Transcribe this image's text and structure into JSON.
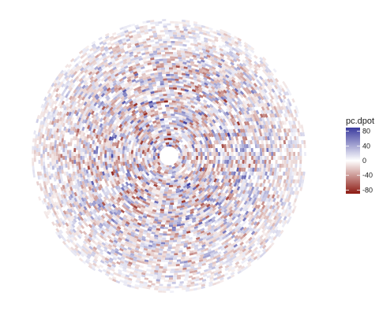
{
  "chart_data": {
    "type": "heatmap",
    "projection": "polar",
    "legend": {
      "title": "pc.dpot",
      "position": "right",
      "range": [
        -90,
        90
      ],
      "ticks": [
        80,
        40,
        0,
        -40,
        -80
      ],
      "tick_labels": [
        "80",
        "40",
        "0",
        "-40",
        "-80"
      ]
    },
    "color_scale": {
      "low": "#8c1a12",
      "mid": "#ffffff",
      "high": "#3a3a9e"
    },
    "grid": false,
    "axes_visible": false
  }
}
